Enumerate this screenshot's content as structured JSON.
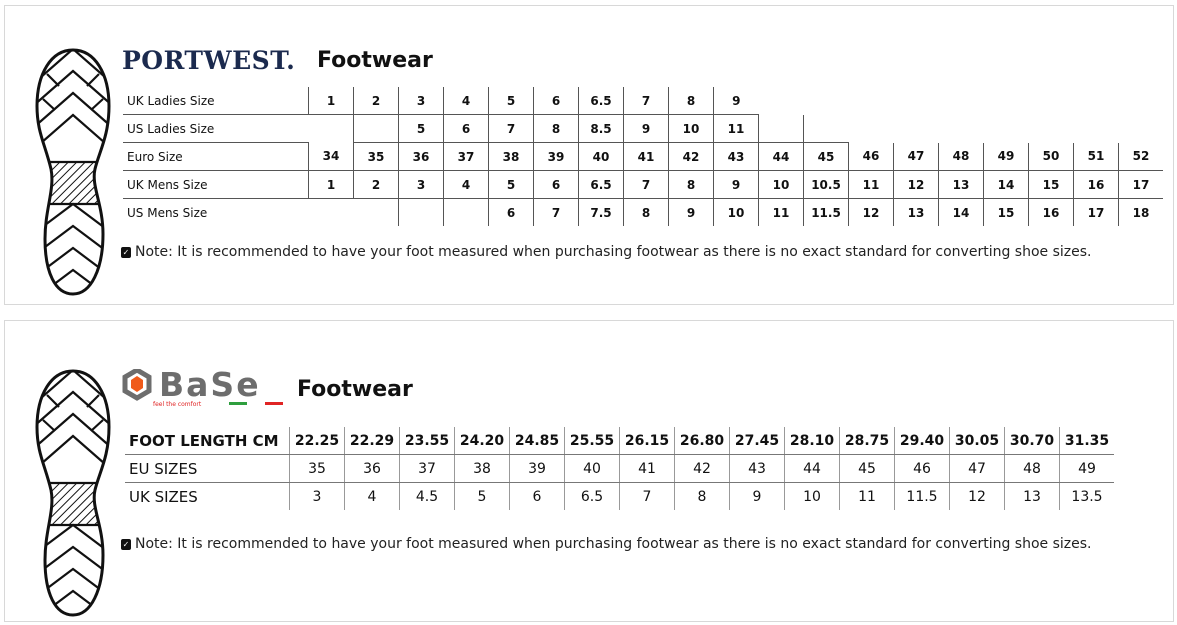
{
  "portwest": {
    "brand": "PORTWEST.",
    "title": "Footwear",
    "rows": [
      {
        "label": "UK Ladies Size",
        "cells": [
          "1",
          "2",
          "3",
          "4",
          "5",
          "6",
          "6.5",
          "7",
          "8",
          "9",
          null,
          null,
          null,
          null,
          null,
          null,
          null,
          null,
          null
        ]
      },
      {
        "label": "US Ladies Size",
        "cells": [
          null,
          "",
          "5",
          "6",
          "7",
          "8",
          "8.5",
          "9",
          "10",
          "11",
          "",
          "",
          null,
          null,
          null,
          null,
          null,
          null,
          null
        ]
      },
      {
        "label": "Euro Size",
        "cells": [
          "34",
          "35",
          "36",
          "37",
          "38",
          "39",
          "40",
          "41",
          "42",
          "43",
          "44",
          "45",
          "46",
          "47",
          "48",
          "49",
          "50",
          "51",
          "52"
        ]
      },
      {
        "label": "UK Mens Size",
        "cells": [
          "1",
          "2",
          "3",
          "4",
          "5",
          "6",
          "6.5",
          "7",
          "8",
          "9",
          "10",
          "10.5",
          "11",
          "12",
          "13",
          "14",
          "15",
          "16",
          "17"
        ]
      },
      {
        "label": "US Mens Size",
        "cells": [
          null,
          null,
          "",
          "",
          "6",
          "7",
          "7.5",
          "8",
          "9",
          "10",
          "11",
          "11.5",
          "12",
          "13",
          "14",
          "15",
          "16",
          "17",
          "18"
        ]
      }
    ],
    "note": "Note: It is recommended to have your foot measured when purchasing footwear as there is no exact standard for converting shoe sizes."
  },
  "base": {
    "brand": "Base",
    "tagline": "feel the comfort",
    "title": "Footwear",
    "colors": {
      "orange": "#f05a1a",
      "grey": "#6d6d6d",
      "green": "#2e9e3e",
      "red": "#e02424"
    },
    "rows": [
      {
        "label": "FOOT LENGTH CM",
        "cells": [
          "22.25",
          "22.29",
          "23.55",
          "24.20",
          "24.85",
          "25.55",
          "26.15",
          "26.80",
          "27.45",
          "28.10",
          "28.75",
          "29.40",
          "30.05",
          "30.70",
          "31.35"
        ]
      },
      {
        "label": "EU SIZES",
        "cells": [
          "35",
          "36",
          "37",
          "38",
          "39",
          "40",
          "41",
          "42",
          "43",
          "44",
          "45",
          "46",
          "47",
          "48",
          "49"
        ]
      },
      {
        "label": "UK SIZES",
        "cells": [
          "3",
          "4",
          "4.5",
          "5",
          "6",
          "6.5",
          "7",
          "8",
          "9",
          "10",
          "11",
          "11.5",
          "12",
          "13",
          "13.5"
        ]
      }
    ],
    "note": "Note: It is recommended to have your foot measured when purchasing footwear as there is no exact standard for converting shoe sizes."
  }
}
